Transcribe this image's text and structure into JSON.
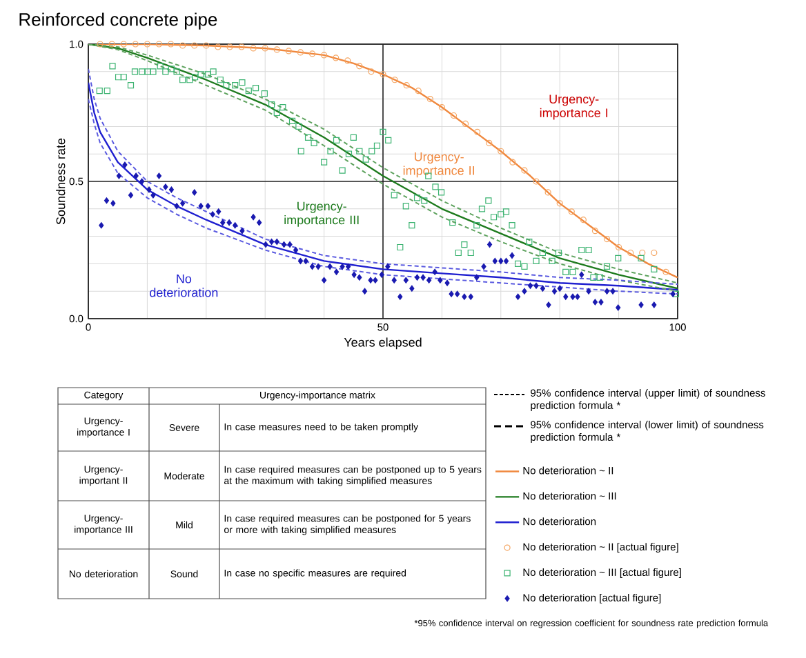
{
  "chart_data": {
    "type": "line",
    "title": "Reinforced concrete pipe",
    "xlabel": "Years elapsed",
    "ylabel": "Soundness rate",
    "xlim": [
      0,
      100
    ],
    "ylim": [
      0,
      1
    ],
    "xticks": [
      0,
      {
        "value": 10,
        "label": null
      },
      {
        "value": 20,
        "label": null
      },
      {
        "value": 30,
        "label": null
      },
      {
        "value": 40,
        "label": null
      },
      50,
      {
        "value": 60,
        "label": null
      },
      {
        "value": 70,
        "label": null
      },
      {
        "value": 80,
        "label": null
      },
      {
        "value": 90,
        "label": null
      },
      100
    ],
    "yticks": [
      {
        "value": 0,
        "label": "0.0"
      },
      {
        "value": 0.1,
        "label": null
      },
      {
        "value": 0.2,
        "label": null
      },
      {
        "value": 0.3,
        "label": null
      },
      {
        "value": 0.4,
        "label": null
      },
      {
        "value": 0.5,
        "label": "0.5"
      },
      {
        "value": 0.6,
        "label": null
      },
      {
        "value": 0.7,
        "label": null
      },
      {
        "value": 0.8,
        "label": null
      },
      {
        "value": 0.9,
        "label": null
      },
      {
        "value": 1,
        "label": "1.0"
      }
    ],
    "grid": true,
    "legend": "bottom right",
    "series": [
      {
        "name": "No deterioration ~ II",
        "color": "#f0883e",
        "x": [
          0,
          10,
          20,
          30,
          40,
          45,
          50,
          55,
          60,
          65,
          70,
          75,
          80,
          85,
          90,
          95,
          100
        ],
        "values": [
          1.0,
          1.0,
          0.995,
          0.985,
          0.96,
          0.93,
          0.89,
          0.84,
          0.77,
          0.69,
          0.61,
          0.52,
          0.42,
          0.34,
          0.26,
          0.2,
          0.15
        ]
      },
      {
        "name": "No deterioration ~ III",
        "color": "#1e7b1e",
        "x": [
          0,
          5,
          10,
          20,
          30,
          40,
          50,
          60,
          70,
          80,
          90,
          100
        ],
        "values": [
          1.0,
          0.985,
          0.95,
          0.87,
          0.78,
          0.66,
          0.52,
          0.4,
          0.31,
          0.22,
          0.16,
          0.11
        ]
      },
      {
        "name": "No deterioration",
        "color": "#2020d0",
        "x": [
          0,
          1,
          2,
          5,
          10,
          15,
          20,
          30,
          40,
          50,
          60,
          70,
          80,
          90,
          100
        ],
        "values": [
          0.86,
          0.75,
          0.68,
          0.57,
          0.47,
          0.41,
          0.36,
          0.27,
          0.21,
          0.18,
          0.165,
          0.15,
          0.13,
          0.12,
          0.105
        ]
      },
      {
        "name": "No deterioration ~ II [actual figure]",
        "type": "scatter",
        "marker": "circle",
        "color": "#f4a460",
        "x": [
          2,
          4,
          6,
          8,
          10,
          12,
          14,
          16,
          18,
          20,
          22,
          24,
          26,
          28,
          30,
          32,
          34,
          36,
          38,
          40,
          42,
          44,
          46,
          48,
          50,
          52,
          54,
          56,
          58,
          60,
          62,
          64,
          66,
          68,
          70,
          72,
          74,
          76,
          78,
          80,
          82,
          84,
          86,
          88,
          90,
          92,
          94,
          96,
          98
        ],
        "values": [
          1.0,
          1.0,
          1.0,
          1.0,
          1.0,
          1.0,
          1.0,
          0.995,
          0.995,
          0.995,
          0.99,
          0.99,
          0.99,
          0.985,
          0.985,
          0.98,
          0.975,
          0.97,
          0.965,
          0.96,
          0.95,
          0.94,
          0.92,
          0.9,
          0.89,
          0.87,
          0.85,
          0.83,
          0.8,
          0.77,
          0.74,
          0.71,
          0.68,
          0.64,
          0.61,
          0.57,
          0.54,
          0.5,
          0.46,
          0.42,
          0.39,
          0.36,
          0.32,
          0.29,
          0.26,
          0.24,
          0.24,
          0.24,
          0.17
        ]
      },
      {
        "name": "No deterioration ~ III [actual figure]",
        "type": "scatter",
        "marker": "square",
        "color": "#3cb371",
        "x": [
          1.9,
          3.2,
          4.1,
          5.1,
          6.0,
          7.2,
          7.9,
          9.1,
          10.1,
          11.0,
          12.2,
          13.1,
          14.1,
          15.0,
          16.0,
          17.2,
          18.1,
          19.1,
          20.3,
          21.2,
          22.4,
          23.4,
          24.9,
          26.1,
          27.2,
          28.4,
          29.9,
          31.1,
          32.0,
          33.0,
          34.6,
          35.7,
          36.1,
          37.3,
          38.3,
          40.0,
          41.1,
          42.1,
          43.1,
          44.2,
          45.0,
          46.0,
          47.1,
          48.1,
          49.0,
          50.0,
          50.9,
          51.9,
          52.9,
          53.9,
          54.9,
          55.8,
          57.0,
          57.7,
          58.9,
          59.9,
          61.8,
          62.8,
          63.8,
          64.9,
          65.9,
          66.8,
          67.9,
          68.8,
          70.0,
          70.9,
          71.9,
          72.9,
          74.0,
          74.8,
          76.0,
          77.1,
          78.7,
          79.8,
          81.0,
          82.2,
          83.7,
          84.9,
          85.7,
          86.8,
          88.0,
          89.9,
          93.8,
          96.0,
          99.7
        ],
        "values": [
          0.83,
          0.83,
          0.92,
          0.88,
          0.88,
          0.85,
          0.9,
          0.9,
          0.9,
          0.9,
          0.92,
          0.9,
          0.91,
          0.9,
          0.87,
          0.87,
          0.88,
          0.89,
          0.89,
          0.9,
          0.87,
          0.85,
          0.85,
          0.86,
          0.83,
          0.84,
          0.82,
          0.78,
          0.75,
          0.77,
          0.72,
          0.7,
          0.61,
          0.66,
          0.64,
          0.57,
          0.61,
          0.65,
          0.54,
          0.6,
          0.66,
          0.61,
          0.58,
          0.61,
          0.63,
          0.68,
          0.65,
          0.45,
          0.26,
          0.41,
          0.34,
          0.44,
          0.43,
          0.52,
          0.48,
          0.46,
          0.35,
          0.24,
          0.27,
          0.24,
          0.34,
          0.4,
          0.43,
          0.37,
          0.38,
          0.39,
          0.34,
          0.2,
          0.19,
          0.28,
          0.21,
          0.24,
          0.21,
          0.24,
          0.17,
          0.17,
          0.25,
          0.25,
          0.15,
          0.15,
          0.19,
          0.22,
          0.22,
          0.18,
          0.09
        ]
      },
      {
        "name": "No deterioration [actual figure]",
        "type": "scatter",
        "marker": "diamond",
        "color": "#1a1ab0",
        "x": [
          2.2,
          3.1,
          4.2,
          5.2,
          6.2,
          7.2,
          8.1,
          9.1,
          10.3,
          11.0,
          12.0,
          13.1,
          14.1,
          15.0,
          16.0,
          18.0,
          19.1,
          20.3,
          21.1,
          22.1,
          22.8,
          23.9,
          24.9,
          26.1,
          28.0,
          29.0,
          30.1,
          31.1,
          32.0,
          33.2,
          34.2,
          35.2,
          36.0,
          36.9,
          38.0,
          39.0,
          40.0,
          41.0,
          42.1,
          43.1,
          44.1,
          45.1,
          46.0,
          46.9,
          47.9,
          48.7,
          49.8,
          50.8,
          51.9,
          52.9,
          53.9,
          54.9,
          55.8,
          56.8,
          57.8,
          58.8,
          59.7,
          60.9,
          61.6,
          62.6,
          63.8,
          64.9,
          65.9,
          67.1,
          68.1,
          69.0,
          70.0,
          70.9,
          71.9,
          72.9,
          74.0,
          75.0,
          76.0,
          77.1,
          78.1,
          79.1,
          80.0,
          81.0,
          82.2,
          83.0,
          83.7,
          84.9,
          86.0,
          87.0,
          88.0,
          89.0,
          89.9,
          93.8,
          96.0,
          99.2
        ],
        "values": [
          0.34,
          0.43,
          0.42,
          0.52,
          0.56,
          0.45,
          0.52,
          0.5,
          0.47,
          0.45,
          0.52,
          0.48,
          0.47,
          0.41,
          0.42,
          0.46,
          0.41,
          0.41,
          0.38,
          0.39,
          0.35,
          0.35,
          0.34,
          0.32,
          0.37,
          0.35,
          0.27,
          0.28,
          0.28,
          0.27,
          0.27,
          0.25,
          0.21,
          0.21,
          0.19,
          0.19,
          0.14,
          0.19,
          0.17,
          0.19,
          0.19,
          0.16,
          0.15,
          0.1,
          0.14,
          0.14,
          0.16,
          0.19,
          0.14,
          0.08,
          0.14,
          0.11,
          0.15,
          0.15,
          0.14,
          0.17,
          0.14,
          0.13,
          0.09,
          0.09,
          0.08,
          0.08,
          0.15,
          0.19,
          0.27,
          0.21,
          0.21,
          0.21,
          0.23,
          0.08,
          0.1,
          0.12,
          0.12,
          0.11,
          0.05,
          0.1,
          0.11,
          0.08,
          0.08,
          0.08,
          0.16,
          0.1,
          0.06,
          0.06,
          0.1,
          0.1,
          0.04,
          0.05,
          0.05,
          0.09
        ]
      },
      {
        "line_style": "dashed",
        "color": "#5fa35f",
        "x": [
          0,
          5,
          10,
          20,
          30,
          40,
          50,
          60,
          70,
          80,
          90,
          100
        ],
        "values": [
          1.0,
          0.99,
          0.96,
          0.89,
          0.8,
          0.69,
          0.55,
          0.43,
          0.33,
          0.24,
          0.18,
          0.13
        ]
      },
      {
        "line_style": "dashed",
        "color": "#5fa35f",
        "x": [
          0,
          5,
          10,
          20,
          30,
          40,
          50,
          60,
          70,
          80,
          90,
          100
        ],
        "values": [
          1.0,
          0.98,
          0.94,
          0.85,
          0.76,
          0.63,
          0.49,
          0.37,
          0.28,
          0.2,
          0.14,
          0.1
        ]
      },
      {
        "line_style": "dashed",
        "color": "#5a5ae0",
        "x": [
          0,
          1,
          2,
          5,
          10,
          15,
          20,
          30,
          40,
          50,
          60,
          70,
          80,
          90,
          100
        ],
        "values": [
          0.91,
          0.8,
          0.73,
          0.61,
          0.5,
          0.44,
          0.39,
          0.29,
          0.23,
          0.2,
          0.185,
          0.17,
          0.15,
          0.14,
          0.125
        ]
      },
      {
        "line_style": "dashed",
        "color": "#5a5ae0",
        "x": [
          0,
          1,
          2,
          5,
          10,
          15,
          20,
          30,
          40,
          50,
          60,
          70,
          80,
          90,
          100
        ],
        "values": [
          0.8,
          0.71,
          0.64,
          0.53,
          0.44,
          0.38,
          0.33,
          0.25,
          0.19,
          0.16,
          0.145,
          0.13,
          0.115,
          0.1,
          0.09
        ]
      }
    ],
    "annotations": [
      "Urgency-importance I",
      "Urgency-importance II",
      "Urgency-importance III",
      "No deterioration",
      "95% confidence interval (upper limit) of soundness prediction formula *",
      "95% confidence interval (lower limit) of soundness prediction formula *",
      "*95% confidence interval on regression coefficient for soundness rate prediction formula",
      "Category",
      "Urgency-importance matrix",
      "Urgency-importance I",
      "Severe",
      "In case measures need to be taken promptly",
      "Urgency-important II",
      "Moderate",
      "In case required measures can be postponed up to 5 years at the maximum with taking simplified measures",
      "Urgency-importance III",
      "Mild",
      "In case required measures can be postponed for 5 years or more with taking simplified measures",
      "No deterioration",
      "Sound",
      "In case no specific measures are required"
    ]
  }
}
